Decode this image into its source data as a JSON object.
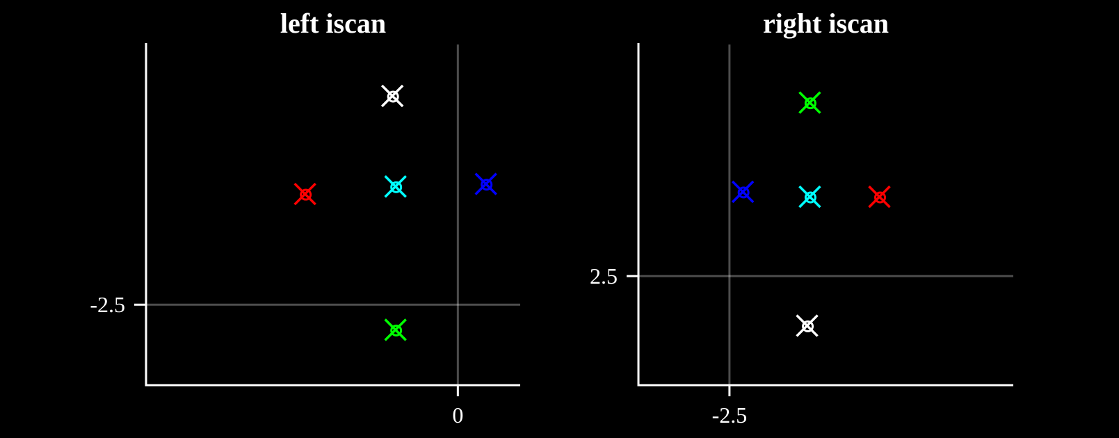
{
  "chart_data": [
    {
      "type": "scatter",
      "title": "left iscan",
      "xlabel": "",
      "ylabel": "",
      "xlim": [
        -5.0,
        1.0
      ],
      "ylim": [
        -4.1,
        2.7
      ],
      "xticks": [
        {
          "value": 0,
          "label": "0"
        }
      ],
      "yticks": [
        {
          "value": -2.5,
          "label": "-2.5"
        }
      ],
      "ref_lines": {
        "x": 0,
        "y": -2.5
      },
      "points": [
        {
          "color": "#ffffff",
          "x": -1.05,
          "y": 1.65
        },
        {
          "color": "#ff0000",
          "x": -2.45,
          "y": -0.3
        },
        {
          "color": "#00ffff",
          "x": -1.0,
          "y": -0.15
        },
        {
          "color": "#0000ff",
          "x": 0.45,
          "y": -0.1
        },
        {
          "color": "#00ff00",
          "x": -1.0,
          "y": -3.0
        }
      ]
    },
    {
      "type": "scatter",
      "title": "right iscan",
      "xlabel": "",
      "ylabel": "",
      "xlim": [
        -4.2,
        2.8
      ],
      "ylim": [
        0.3,
        7.2
      ],
      "xticks": [
        {
          "value": -2.5,
          "label": "-2.5"
        }
      ],
      "yticks": [
        {
          "value": 2.5,
          "label": "2.5"
        }
      ],
      "ref_lines": {
        "x": -2.5,
        "y": 2.5
      },
      "points": [
        {
          "color": "#00ff00",
          "x": -1.0,
          "y": 6.0
        },
        {
          "color": "#0000ff",
          "x": -2.25,
          "y": 4.2
        },
        {
          "color": "#00ffff",
          "x": -1.0,
          "y": 4.1
        },
        {
          "color": "#ff0000",
          "x": 0.3,
          "y": 4.1
        },
        {
          "color": "#ffffff",
          "x": -1.05,
          "y": 1.5
        }
      ]
    }
  ]
}
